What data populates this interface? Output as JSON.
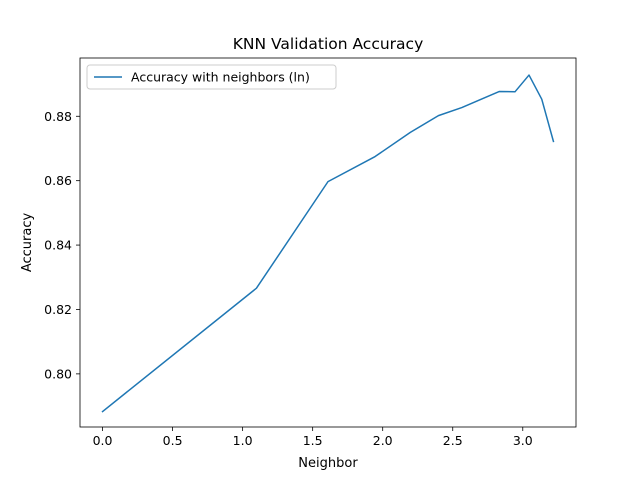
{
  "chart_data": {
    "type": "line",
    "title": "KNN Validation Accuracy",
    "xlabel": "Neighbor",
    "ylabel": "Accuracy",
    "xlim": [
      -0.161,
      3.38
    ],
    "ylim": [
      0.7835,
      0.8981
    ],
    "xticks": [
      0.0,
      0.5,
      1.0,
      1.5,
      2.0,
      2.5,
      3.0
    ],
    "xtick_labels": [
      "0.0",
      "0.5",
      "1.0",
      "1.5",
      "2.0",
      "2.5",
      "3.0"
    ],
    "yticks": [
      0.8,
      0.82,
      0.84,
      0.86,
      0.88
    ],
    "ytick_labels": [
      "0.80",
      "0.82",
      "0.84",
      "0.86",
      "0.88"
    ],
    "grid": false,
    "legend_position": "upper-left",
    "series": [
      {
        "name": "Accuracy with neighbors (ln)",
        "color": "#1f77b4",
        "x": [
          0.0,
          1.0986,
          1.6094,
          1.9459,
          2.1972,
          2.3979,
          2.5649,
          2.7081,
          2.8332,
          2.9444,
          3.0445,
          3.1355,
          3.2189
        ],
        "y": [
          0.7883,
          0.8266,
          0.8597,
          0.8675,
          0.875,
          0.8802,
          0.8827,
          0.8854,
          0.8877,
          0.8876,
          0.8928,
          0.8853,
          0.8722
        ]
      }
    ]
  }
}
